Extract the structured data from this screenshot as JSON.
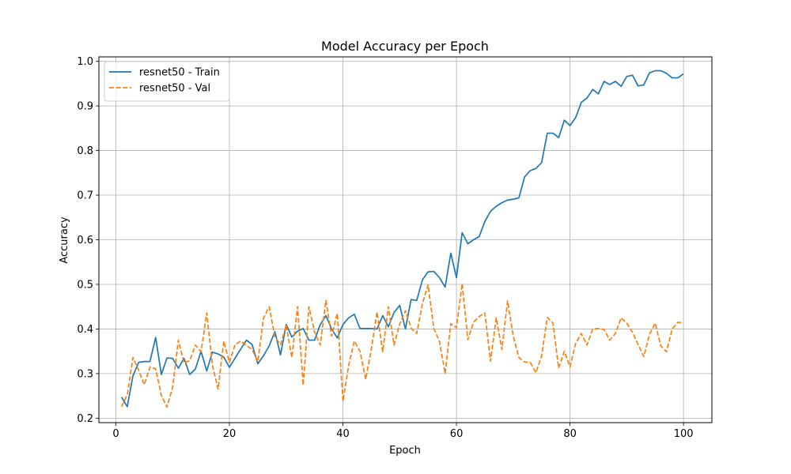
{
  "chart_data": {
    "type": "line",
    "title": "Model Accuracy per Epoch",
    "xlabel": "Epoch",
    "ylabel": "Accuracy",
    "xlim": [
      -3,
      105
    ],
    "ylim": [
      0.19,
      1.01
    ],
    "xticks": [
      0,
      20,
      40,
      60,
      80,
      100
    ],
    "yticks": [
      0.2,
      0.3,
      0.4,
      0.5,
      0.6,
      0.7,
      0.8,
      0.9,
      1.0
    ],
    "ytick_labels": [
      "0.2",
      "0.3",
      "0.4",
      "0.5",
      "0.6",
      "0.7",
      "0.8",
      "0.9",
      "1.0"
    ],
    "grid": true,
    "legend_position": "top-left",
    "x": [
      1,
      2,
      3,
      4,
      5,
      6,
      7,
      8,
      9,
      10,
      11,
      12,
      13,
      14,
      15,
      16,
      17,
      18,
      19,
      20,
      21,
      22,
      23,
      24,
      25,
      26,
      27,
      28,
      29,
      30,
      31,
      32,
      33,
      34,
      35,
      36,
      37,
      38,
      39,
      40,
      41,
      42,
      43,
      44,
      45,
      46,
      47,
      48,
      49,
      50,
      51,
      52,
      53,
      54,
      55,
      56,
      57,
      58,
      59,
      60,
      61,
      62,
      63,
      64,
      65,
      66,
      67,
      68,
      69,
      70,
      71,
      72,
      73,
      74,
      75,
      76,
      77,
      78,
      79,
      80,
      81,
      82,
      83,
      84,
      85,
      86,
      87,
      88,
      89,
      90,
      91,
      92,
      93,
      94,
      95,
      96,
      97,
      98,
      99,
      100
    ],
    "series": [
      {
        "name": "resnet50 - Train",
        "color": "#1f77b4",
        "style": "solid",
        "values": [
          0.247,
          0.226,
          0.295,
          0.325,
          0.327,
          0.327,
          0.381,
          0.298,
          0.335,
          0.334,
          0.312,
          0.334,
          0.298,
          0.31,
          0.35,
          0.306,
          0.348,
          0.344,
          0.337,
          0.314,
          0.335,
          0.355,
          0.375,
          0.365,
          0.322,
          0.34,
          0.362,
          0.394,
          0.342,
          0.41,
          0.382,
          0.395,
          0.401,
          0.375,
          0.375,
          0.41,
          0.43,
          0.4,
          0.38,
          0.41,
          0.425,
          0.433,
          0.401,
          0.401,
          0.401,
          0.4,
          0.43,
          0.405,
          0.437,
          0.453,
          0.4,
          0.466,
          0.464,
          0.51,
          0.528,
          0.529,
          0.515,
          0.494,
          0.57,
          0.515,
          0.616,
          0.591,
          0.6,
          0.607,
          0.641,
          0.664,
          0.675,
          0.683,
          0.689,
          0.691,
          0.694,
          0.741,
          0.755,
          0.76,
          0.773,
          0.839,
          0.839,
          0.829,
          0.868,
          0.856,
          0.874,
          0.908,
          0.918,
          0.937,
          0.927,
          0.955,
          0.948,
          0.955,
          0.944,
          0.966,
          0.969,
          0.945,
          0.947,
          0.974,
          0.979,
          0.979,
          0.973,
          0.963,
          0.963,
          0.972
        ]
      },
      {
        "name": "resnet50 - Val",
        "color": "#ff7f0e",
        "style": "dashed",
        "values": [
          0.226,
          0.252,
          0.336,
          0.308,
          0.275,
          0.315,
          0.311,
          0.251,
          0.225,
          0.27,
          0.375,
          0.324,
          0.329,
          0.364,
          0.349,
          0.436,
          0.319,
          0.265,
          0.373,
          0.325,
          0.365,
          0.373,
          0.363,
          0.354,
          0.327,
          0.424,
          0.45,
          0.383,
          0.365,
          0.408,
          0.336,
          0.45,
          0.274,
          0.45,
          0.393,
          0.364,
          0.464,
          0.384,
          0.435,
          0.238,
          0.318,
          0.373,
          0.35,
          0.287,
          0.355,
          0.438,
          0.349,
          0.45,
          0.364,
          0.411,
          0.441,
          0.402,
          0.39,
          0.457,
          0.499,
          0.402,
          0.372,
          0.3,
          0.412,
          0.403,
          0.502,
          0.376,
          0.415,
          0.428,
          0.436,
          0.328,
          0.425,
          0.354,
          0.463,
          0.384,
          0.336,
          0.326,
          0.325,
          0.302,
          0.34,
          0.426,
          0.413,
          0.312,
          0.35,
          0.315,
          0.368,
          0.39,
          0.364,
          0.4,
          0.401,
          0.399,
          0.375,
          0.39,
          0.425,
          0.413,
          0.393,
          0.365,
          0.338,
          0.388,
          0.413,
          0.362,
          0.349,
          0.4,
          0.415,
          0.414
        ]
      }
    ]
  }
}
